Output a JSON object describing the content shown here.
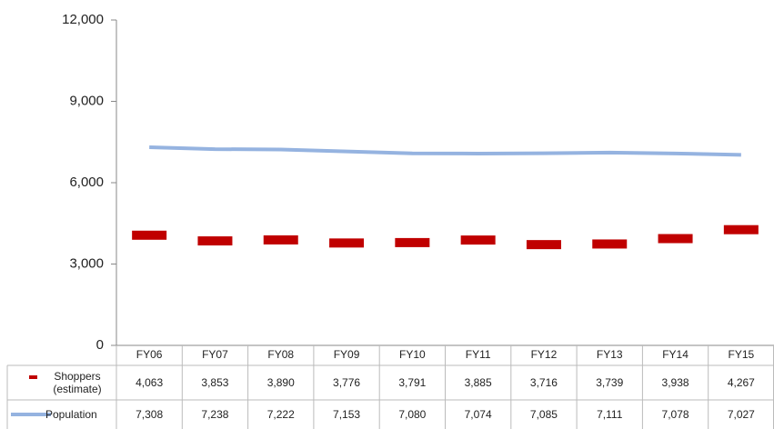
{
  "chart_data": {
    "type": "line",
    "categories": [
      "FY06",
      "FY07",
      "FY08",
      "FY09",
      "FY10",
      "FY11",
      "FY12",
      "FY13",
      "FY14",
      "FY15"
    ],
    "series": [
      {
        "name": "Shoppers (estimate)",
        "color": "#c00000",
        "marker": "dash",
        "values": [
          4063,
          3853,
          3890,
          3776,
          3791,
          3885,
          3716,
          3739,
          3938,
          4267
        ],
        "value_labels": [
          "4,063",
          "3,853",
          "3,890",
          "3,776",
          "3,791",
          "3,885",
          "3,716",
          "3,739",
          "3,938",
          "4,267"
        ]
      },
      {
        "name": "Population",
        "color": "#95b3e0",
        "marker": "line",
        "values": [
          7308,
          7238,
          7222,
          7153,
          7080,
          7074,
          7085,
          7111,
          7078,
          7027
        ],
        "value_labels": [
          "7,308",
          "7,238",
          "7,222",
          "7,153",
          "7,080",
          "7,074",
          "7,085",
          "7,111",
          "7,078",
          "7,027"
        ]
      }
    ],
    "ylim": [
      0,
      12000
    ],
    "yticks": [
      0,
      {
        "value": 3000,
        "label": "3,000"
      },
      {
        "value": 6000,
        "label": "6,000"
      },
      {
        "value": 9000,
        "label": "9,000"
      },
      {
        "value": 12000,
        "label": "12,000"
      }
    ],
    "grid": false,
    "data_table": true
  }
}
